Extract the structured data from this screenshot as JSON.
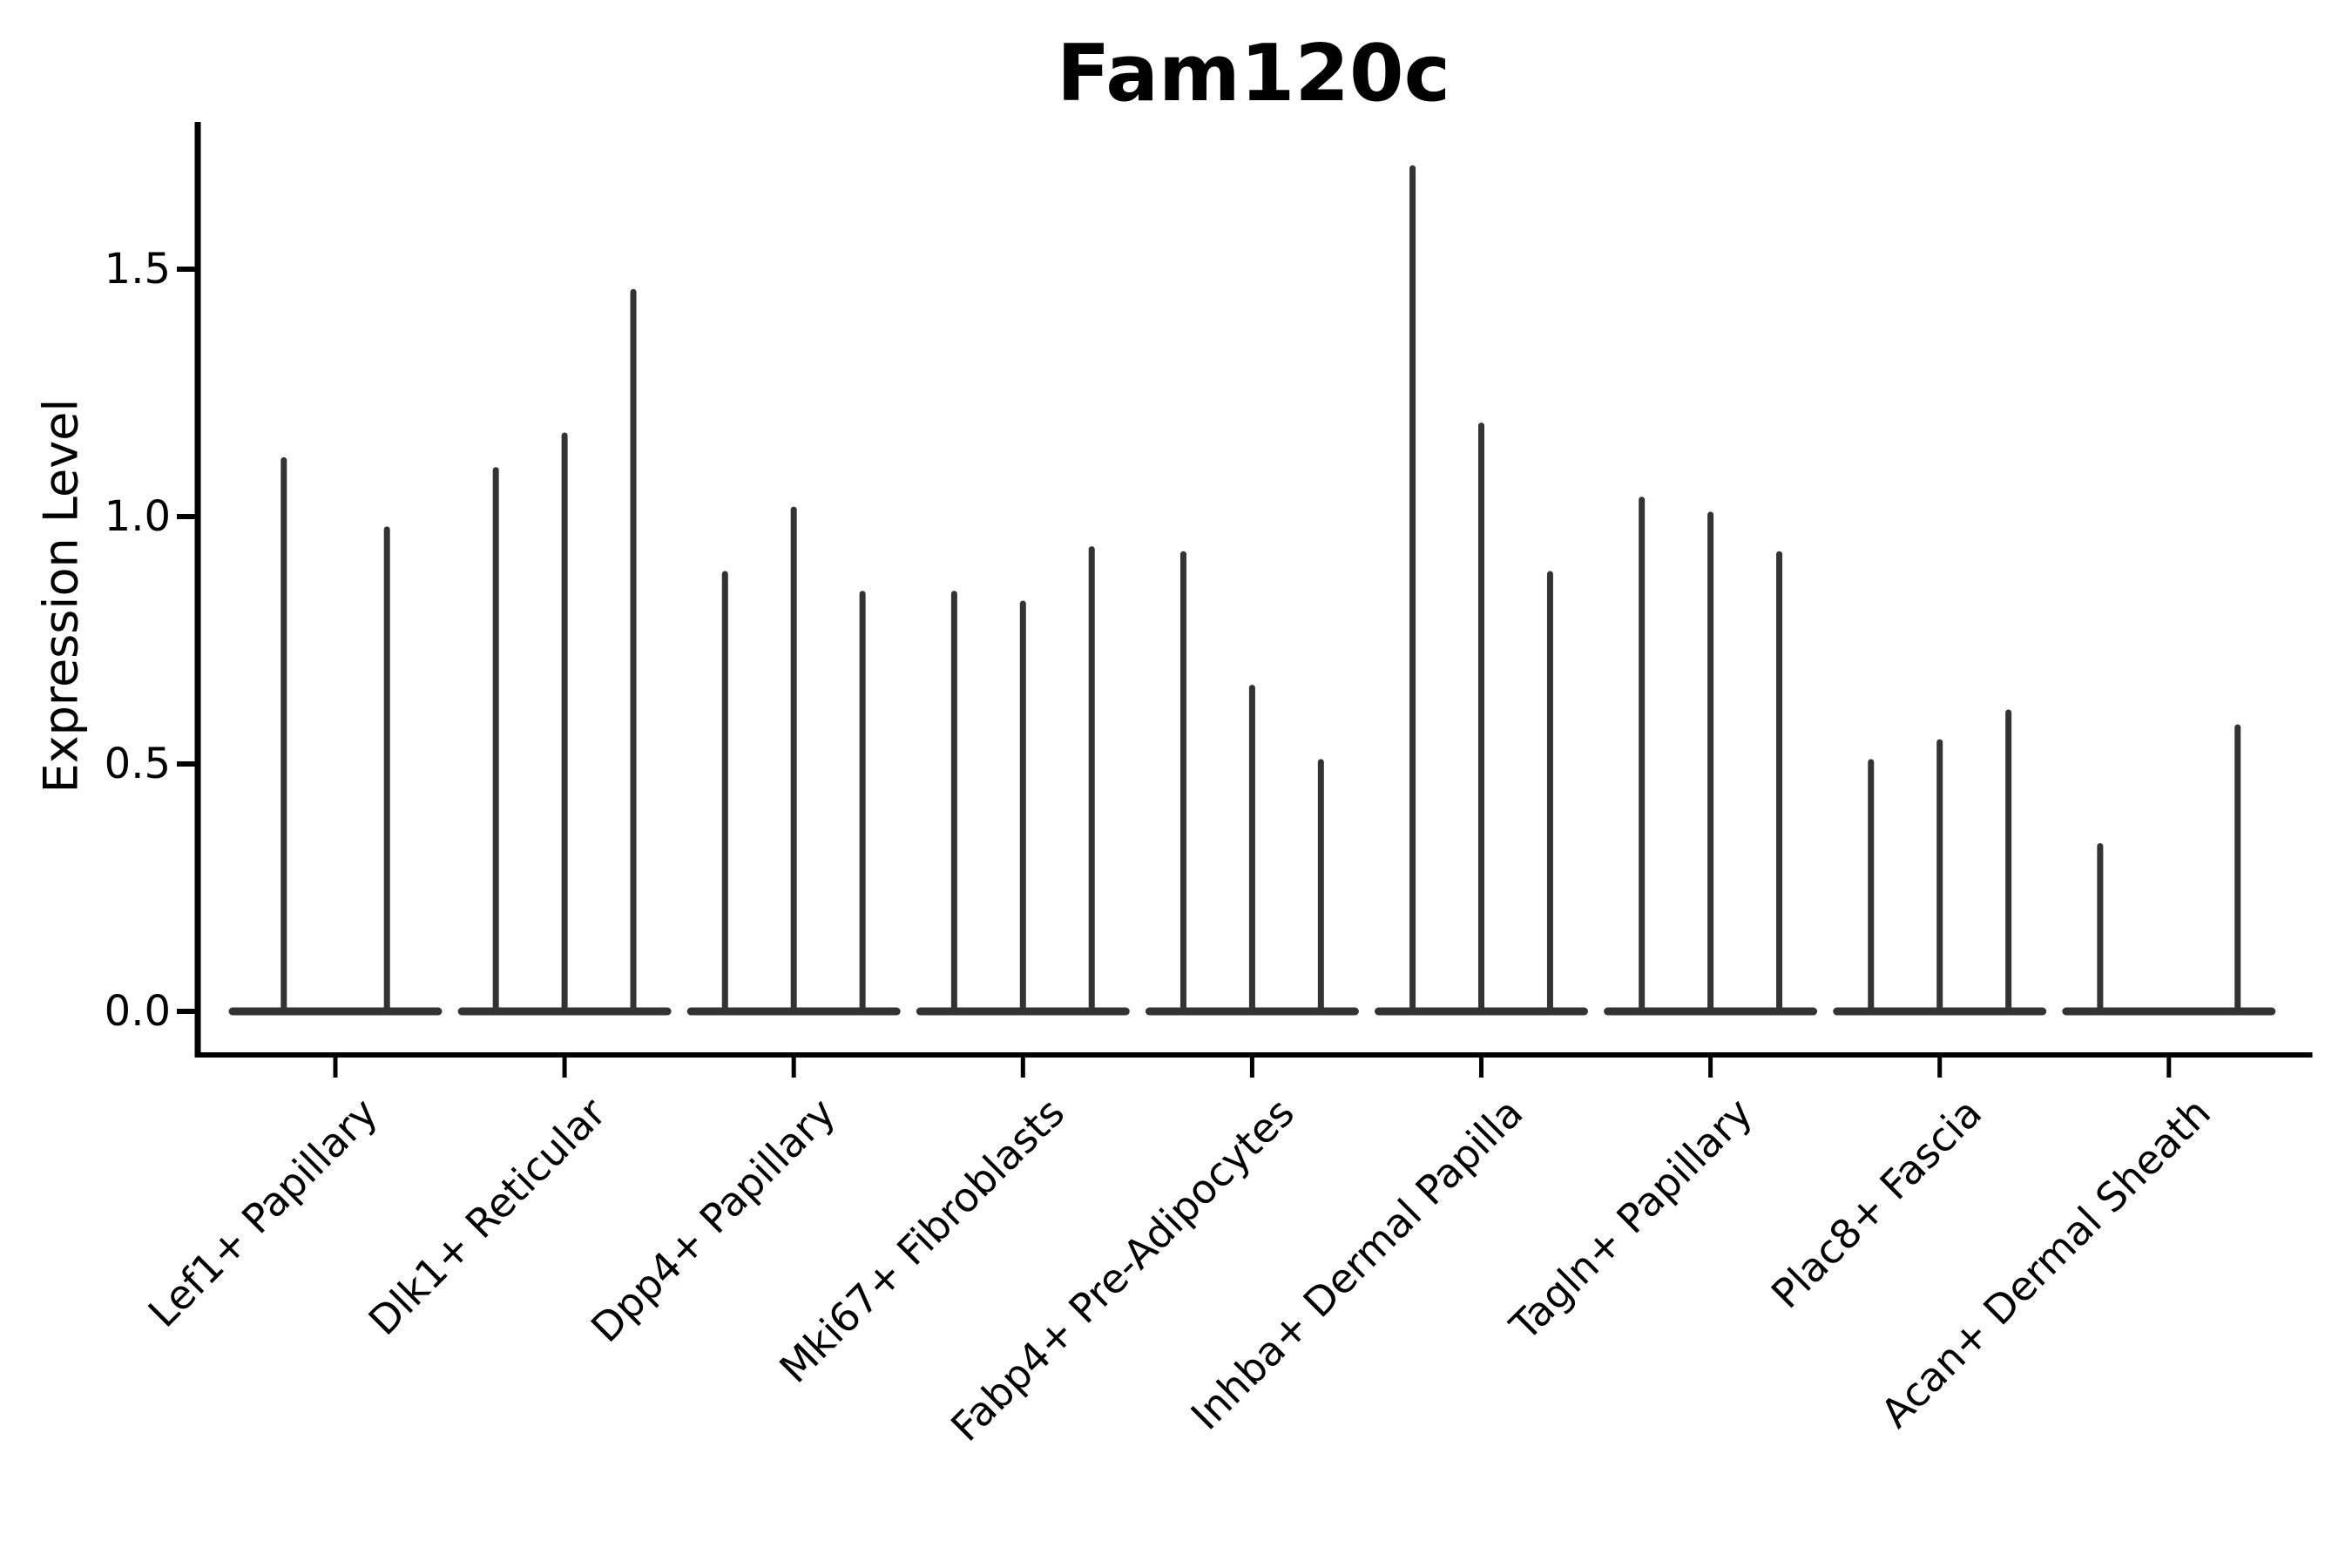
{
  "figure": {
    "title": "Fam120c",
    "ylabel": "Expression Level"
  },
  "chart_data": {
    "type": "violin",
    "title": "Fam120c",
    "xlabel": "",
    "ylabel": "Expression Level",
    "ylim": [
      -0.09,
      1.8
    ],
    "yticks": [
      0.0,
      0.5,
      1.0,
      1.5
    ],
    "ytick_labels": [
      "0.0",
      "0.5",
      "1.0",
      "1.5"
    ],
    "grid": false,
    "legend": "none",
    "style": "sparse single-cell expression violins rendered as thin vertical spikes with flat bodies at zero",
    "categories": [
      "Lef1+ Papillary",
      "Dlk1+ Reticular",
      "Dpp4+ Papillary",
      "Mki67+ Fibroblasts",
      "Fabp4+ Pre-Adipocytes",
      "Inhba+ Dermal Papilla",
      "Tagln+ Papillary",
      "Plac8+ Fascia",
      "Acan+ Dermal Sheath"
    ],
    "groups": [
      {
        "label": "Lef1+ Papillary",
        "violins": [
          {
            "offset": -0.225,
            "max": 1.12
          },
          {
            "offset": 0.225,
            "max": 0.98
          }
        ]
      },
      {
        "label": "Dlk1+ Reticular",
        "violins": [
          {
            "offset": -0.3,
            "max": 1.1
          },
          {
            "offset": 0,
            "max": 1.17
          },
          {
            "offset": 0.3,
            "max": 1.46
          }
        ]
      },
      {
        "label": "Dpp4+ Papillary",
        "violins": [
          {
            "offset": -0.3,
            "max": 0.89
          },
          {
            "offset": 0,
            "max": 1.02
          },
          {
            "offset": 0.3,
            "max": 0.85
          }
        ]
      },
      {
        "label": "Mki67+ Fibroblasts",
        "violins": [
          {
            "offset": -0.3,
            "max": 0.85
          },
          {
            "offset": 0,
            "max": 0.83
          },
          {
            "offset": 0.3,
            "max": 0.94
          }
        ]
      },
      {
        "label": "Fabp4+ Pre-Adipocytes",
        "violins": [
          {
            "offset": -0.3,
            "max": 0.93
          },
          {
            "offset": 0,
            "max": 0.66
          },
          {
            "offset": 0.3,
            "max": 0.51
          }
        ]
      },
      {
        "label": "Inhba+ Dermal Papilla",
        "violins": [
          {
            "offset": -0.3,
            "max": 1.71
          },
          {
            "offset": 0,
            "max": 1.19
          },
          {
            "offset": 0.3,
            "max": 0.89
          }
        ]
      },
      {
        "label": "Tagln+ Papillary",
        "violins": [
          {
            "offset": -0.3,
            "max": 1.04
          },
          {
            "offset": 0,
            "max": 1.01
          },
          {
            "offset": 0.3,
            "max": 0.93
          }
        ]
      },
      {
        "label": "Plac8+ Fascia",
        "violins": [
          {
            "offset": -0.3,
            "max": 0.51
          },
          {
            "offset": 0,
            "max": 0.55
          },
          {
            "offset": 0.3,
            "max": 0.61
          }
        ]
      },
      {
        "label": "Acan+ Dermal Sheath",
        "violins": [
          {
            "offset": -0.3,
            "max": 0.34
          },
          {
            "offset": 0.3,
            "max": 0.58
          }
        ]
      }
    ],
    "colors": {
      "violin": "#333333",
      "axis": "#000000",
      "text": "#000000",
      "background": "#ffffff"
    }
  }
}
